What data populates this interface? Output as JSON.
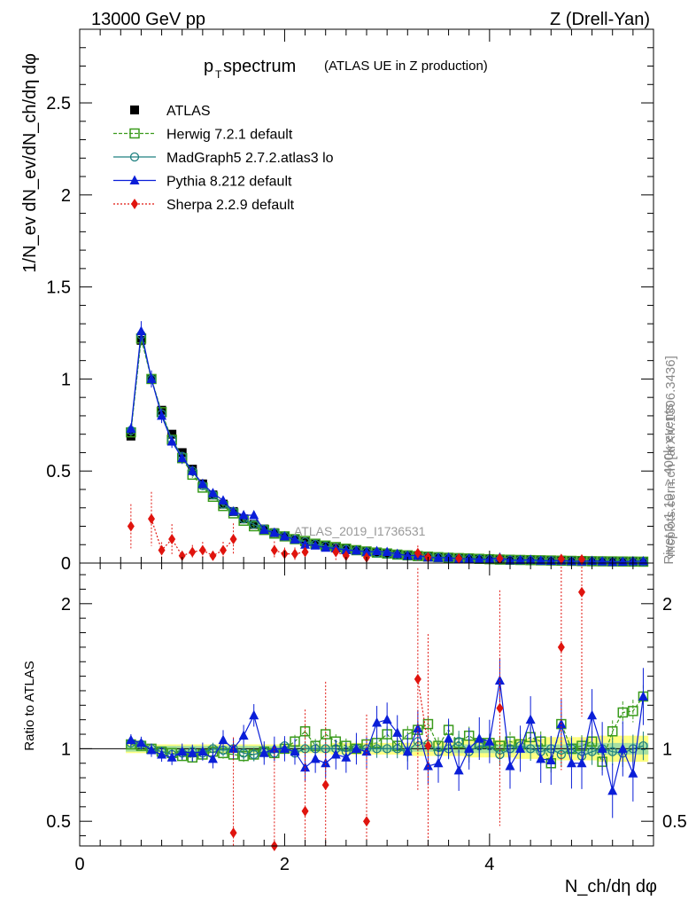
{
  "header": {
    "left": "13000 GeV pp",
    "right": "Z (Drell-Yan)"
  },
  "side_labels": {
    "rivet": "Rivet 3.1.10, ≥ 400k events",
    "mcplots": "mcplots.cern.ch [arXiv:1306.3436]"
  },
  "watermark": "ATLAS_2019_I1736531",
  "colors": {
    "atlas": "#000000",
    "herwig": "#3a9b1c",
    "madgraph": "#1f8080",
    "pythia": "#0a1ed8",
    "sherpa": "#e0140e",
    "band_outer": "#ffff80",
    "band_inner": "#a8e0a0"
  },
  "chart_data": [
    {
      "type": "scatter",
      "panel": "main",
      "title_main": "p",
      "title_sub": "T",
      "title_rest": " spectrum",
      "title_paren": "(ATLAS UE in Z production)",
      "xlabel": "N_ch/dη dφ",
      "ylabel": "1/N_ev dN_ev/dN_ch/dη dφ",
      "xlim": [
        0,
        5.6
      ],
      "ylim": [
        0,
        2.9
      ],
      "x_ticks": [
        0,
        2,
        4
      ],
      "y_ticks": [
        "0",
        "0.5",
        "1",
        "1.5",
        "2",
        "2.5"
      ],
      "x": [
        0.5,
        0.6,
        0.7,
        0.8,
        0.9,
        1.0,
        1.1,
        1.2,
        1.3,
        1.4,
        1.5,
        1.6,
        1.7,
        1.8,
        1.9,
        2.0,
        2.1,
        2.2,
        2.3,
        2.4,
        2.5,
        2.6,
        2.7,
        2.8,
        2.9,
        3.0,
        3.1,
        3.2,
        3.3,
        3.4,
        3.5,
        3.6,
        3.7,
        3.8,
        3.9,
        4.0,
        4.1,
        4.2,
        4.3,
        4.4,
        4.5,
        4.6,
        4.7,
        4.8,
        4.9,
        5.0,
        5.1,
        5.2,
        5.3,
        5.4,
        5.5
      ],
      "series": [
        {
          "name": "ATLAS",
          "key": "atlas",
          "marker": "square-filled",
          "values": [
            0.69,
            1.21,
            1.0,
            0.83,
            0.7,
            0.6,
            0.51,
            0.43,
            0.37,
            0.32,
            0.28,
            0.24,
            0.21,
            0.185,
            0.165,
            0.145,
            0.13,
            0.115,
            0.102,
            0.092,
            0.083,
            0.075,
            0.068,
            0.061,
            0.055,
            0.05,
            0.045,
            0.041,
            0.037,
            0.034,
            0.031,
            0.028,
            0.026,
            0.024,
            0.022,
            0.02,
            0.018,
            0.017,
            0.016,
            0.015,
            0.014,
            0.013,
            0.012,
            0.011,
            0.01,
            0.0095,
            0.009,
            0.0085,
            0.008,
            0.0075,
            0.007
          ]
        },
        {
          "name": "Herwig 7.2.1 default",
          "key": "herwig",
          "marker": "square-open",
          "values": [
            0.71,
            1.22,
            1.0,
            0.82,
            0.67,
            0.57,
            0.48,
            0.41,
            0.36,
            0.31,
            0.27,
            0.23,
            0.2,
            0.18,
            0.16,
            0.145,
            0.13,
            0.12,
            0.105,
            0.095,
            0.087,
            0.078,
            0.07,
            0.063,
            0.057,
            0.052,
            0.046,
            0.042,
            0.038,
            0.035,
            0.032,
            0.029,
            0.027,
            0.025,
            0.023,
            0.021,
            0.019,
            0.018,
            0.017,
            0.016,
            0.015,
            0.014,
            0.013,
            0.012,
            0.011,
            0.01,
            0.0095,
            0.009,
            0.0085,
            0.008,
            0.0075
          ]
        },
        {
          "name": "MadGraph5 2.7.2.atlas3 lo",
          "key": "madgraph",
          "marker": "circle-open",
          "values": [
            0.72,
            1.24,
            1.0,
            0.81,
            0.67,
            0.58,
            0.5,
            0.42,
            0.37,
            0.32,
            0.28,
            0.24,
            0.21,
            0.185,
            0.165,
            0.145,
            0.13,
            0.115,
            0.102,
            0.092,
            0.083,
            0.075,
            0.068,
            0.061,
            0.055,
            0.05,
            0.045,
            0.041,
            0.037,
            0.034,
            0.031,
            0.028,
            0.026,
            0.024,
            0.022,
            0.02,
            0.018,
            0.017,
            0.016,
            0.015,
            0.014,
            0.013,
            0.012,
            0.011,
            0.01,
            0.0095,
            0.009,
            0.0085,
            0.008,
            0.0075,
            0.007
          ]
        },
        {
          "name": "Pythia 8.212 default",
          "key": "pythia",
          "marker": "triangle-filled",
          "values": [
            0.73,
            1.26,
            1.0,
            0.8,
            0.66,
            0.57,
            0.5,
            0.43,
            0.38,
            0.34,
            0.28,
            0.26,
            0.26,
            0.18,
            0.165,
            0.145,
            0.128,
            0.1,
            0.095,
            0.083,
            0.08,
            0.07,
            0.068,
            0.06,
            0.065,
            0.06,
            0.05,
            0.04,
            0.042,
            0.03,
            0.028,
            0.03,
            0.022,
            0.024,
            0.02,
            0.021,
            0.03,
            0.015,
            0.016,
            0.018,
            0.013,
            0.012,
            0.014,
            0.01,
            0.009,
            0.012,
            0.009,
            0.006,
            0.007,
            0.01,
            0.01
          ]
        },
        {
          "name": "Sherpa 2.2.9 default",
          "key": "sherpa",
          "marker": "diamond-filled",
          "values": [
            0.2,
            null,
            0.24,
            0.07,
            0.13,
            0.04,
            0.06,
            0.07,
            0.04,
            0.07,
            0.13,
            null,
            null,
            null,
            0.07,
            0.05,
            0.05,
            0.06,
            null,
            null,
            0.06,
            0.04,
            null,
            0.03,
            null,
            null,
            null,
            null,
            0.054,
            0.032,
            null,
            null,
            0.025,
            null,
            null,
            null,
            0.025,
            null,
            null,
            null,
            null,
            null,
            0.022,
            null,
            0.02,
            null,
            null,
            null,
            null,
            null,
            null
          ]
        }
      ]
    },
    {
      "type": "scatter",
      "panel": "ratio",
      "ylabel": "Ratio to ATLAS",
      "xlim": [
        0,
        5.6
      ],
      "ylim": [
        0.33,
        2.28
      ],
      "y_ticks": [
        "0.5",
        "1",
        "2"
      ],
      "x": [
        0.5,
        0.6,
        0.7,
        0.8,
        0.9,
        1.0,
        1.1,
        1.2,
        1.3,
        1.4,
        1.5,
        1.6,
        1.7,
        1.8,
        1.9,
        2.0,
        2.1,
        2.2,
        2.3,
        2.4,
        2.5,
        2.6,
        2.7,
        2.8,
        2.9,
        3.0,
        3.1,
        3.2,
        3.3,
        3.4,
        3.5,
        3.6,
        3.7,
        3.8,
        3.9,
        4.0,
        4.1,
        4.2,
        4.3,
        4.4,
        4.5,
        4.6,
        4.7,
        4.8,
        4.9,
        5.0,
        5.1,
        5.2,
        5.3,
        5.4,
        5.5
      ],
      "band_inner": [
        0.02,
        0.02,
        0.02,
        0.02,
        0.02,
        0.02,
        0.02,
        0.02,
        0.02,
        0.02,
        0.02,
        0.02,
        0.02,
        0.02,
        0.02,
        0.02,
        0.02,
        0.02,
        0.02,
        0.02,
        0.02,
        0.02,
        0.02,
        0.02,
        0.02,
        0.02,
        0.02,
        0.02,
        0.02,
        0.02,
        0.02,
        0.02,
        0.03,
        0.03,
        0.03,
        0.03,
        0.03,
        0.03,
        0.03,
        0.03,
        0.03,
        0.03,
        0.03,
        0.04,
        0.04,
        0.04,
        0.04,
        0.04,
        0.04,
        0.04,
        0.04
      ],
      "band_outer": [
        0.03,
        0.03,
        0.03,
        0.03,
        0.03,
        0.03,
        0.03,
        0.03,
        0.03,
        0.03,
        0.03,
        0.03,
        0.03,
        0.03,
        0.03,
        0.03,
        0.03,
        0.03,
        0.03,
        0.03,
        0.04,
        0.04,
        0.04,
        0.04,
        0.04,
        0.04,
        0.04,
        0.04,
        0.05,
        0.05,
        0.05,
        0.05,
        0.05,
        0.06,
        0.06,
        0.06,
        0.06,
        0.06,
        0.07,
        0.07,
        0.07,
        0.08,
        0.08,
        0.08,
        0.08,
        0.08,
        0.09,
        0.09,
        0.09,
        0.09,
        0.09
      ],
      "series": [
        {
          "name": "Herwig 7.2.1 default",
          "key": "herwig",
          "marker": "square-open",
          "values": [
            1.03,
            1.02,
            1.0,
            0.98,
            0.97,
            0.95,
            0.94,
            0.96,
            0.98,
            0.97,
            0.96,
            0.95,
            0.96,
            0.98,
            0.97,
            1.0,
            1.05,
            1.12,
            1.02,
            1.1,
            1.05,
            1.02,
            1.0,
            1.03,
            1.04,
            1.1,
            1.02,
            1.1,
            1.13,
            1.17,
            1.02,
            1.13,
            1.04,
            1.09,
            1.04,
            1.04,
            1.02,
            1.05,
            1.03,
            1.08,
            1.05,
            0.9,
            1.17,
            1.0,
            1.02,
            1.05,
            0.91,
            1.12,
            1.25,
            1.26,
            1.36
          ]
        },
        {
          "name": "MadGraph5 2.7.2.atlas3 lo",
          "key": "madgraph",
          "marker": "circle-open",
          "values": [
            1.04,
            1.03,
            1.0,
            0.98,
            0.96,
            0.97,
            0.98,
            0.97,
            1.0,
            0.99,
            1.0,
            0.97,
            0.96,
            0.98,
            0.97,
            1.02,
            0.97,
            1.0,
            1.0,
            1.0,
            1.0,
            0.98,
            1.0,
            1.0,
            1.0,
            1.0,
            1.0,
            0.98,
            1.05,
            1.03,
            0.98,
            1.0,
            1.05,
            0.98,
            1.02,
            1.02,
            0.96,
            1.0,
            1.02,
            1.0,
            0.98,
            1.0,
            0.96,
            1.0,
            0.95,
            0.98,
            1.0,
            0.98,
            0.97,
            1.0,
            1.02
          ]
        },
        {
          "name": "Pythia 8.212 default",
          "key": "pythia",
          "marker": "triangle-filled",
          "values": [
            1.06,
            1.04,
            0.99,
            0.96,
            0.94,
            0.98,
            0.97,
            0.98,
            0.93,
            1.06,
            1.0,
            1.09,
            1.23,
            0.97,
            1.0,
            1.0,
            0.98,
            0.87,
            0.93,
            0.9,
            0.96,
            0.94,
            1.0,
            0.98,
            1.18,
            1.2,
            1.11,
            0.98,
            1.14,
            0.88,
            0.9,
            1.07,
            0.85,
            1.0,
            1.07,
            1.05,
            1.47,
            0.88,
            1.0,
            1.2,
            0.93,
            0.92,
            1.17,
            0.9,
            0.9,
            1.23,
            1.0,
            0.71,
            1.0,
            0.83,
            1.36
          ]
        },
        {
          "name": "Sherpa 2.2.9 default",
          "key": "sherpa",
          "marker": "diamond-filled",
          "values": [
            null,
            null,
            null,
            null,
            null,
            null,
            null,
            null,
            null,
            null,
            0.42,
            null,
            null,
            null,
            0.33,
            null,
            null,
            0.57,
            null,
            0.75,
            null,
            null,
            null,
            0.5,
            null,
            null,
            null,
            null,
            1.48,
            1.02,
            null,
            null,
            null,
            null,
            null,
            null,
            1.28,
            null,
            null,
            null,
            null,
            null,
            1.7,
            null,
            2.08,
            null,
            null,
            null,
            null,
            null,
            null
          ]
        }
      ]
    }
  ]
}
